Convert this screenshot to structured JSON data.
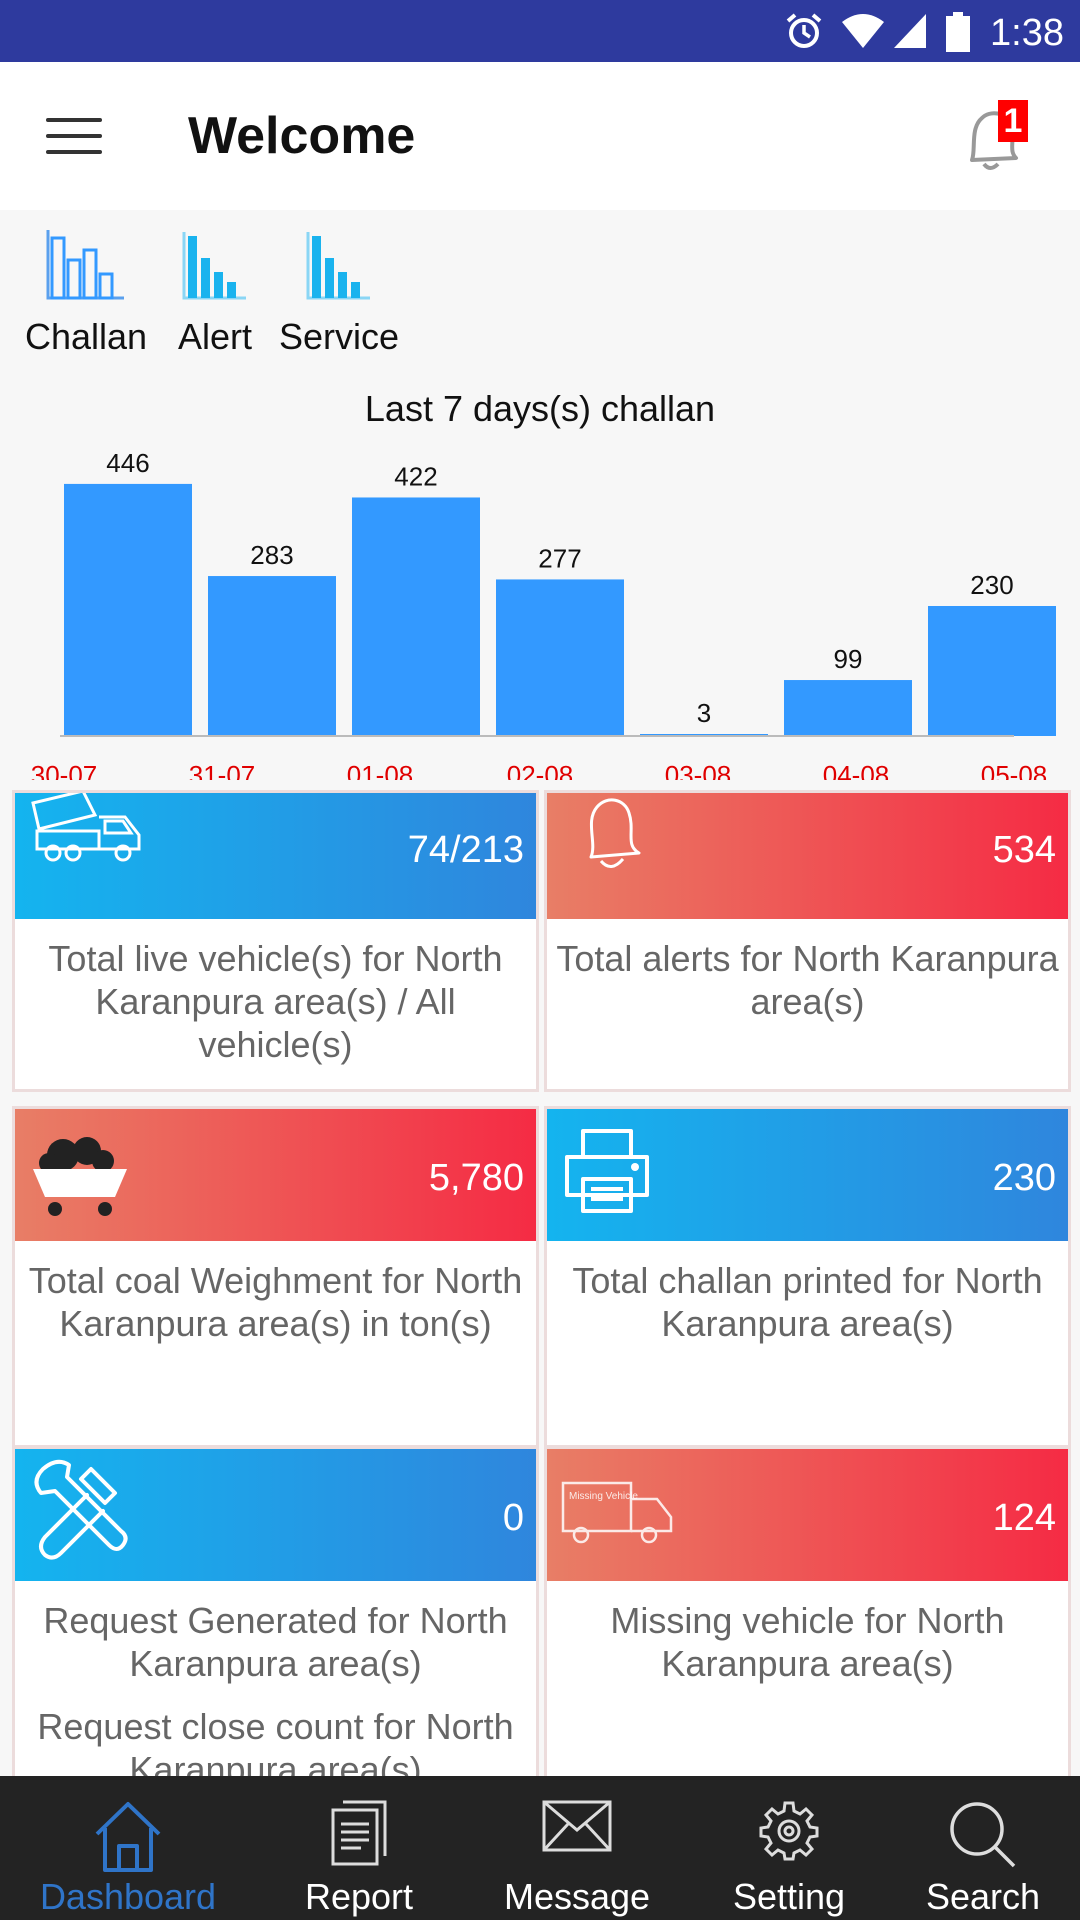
{
  "status_bar": {
    "time": "1:38",
    "icons": [
      "alarm-icon",
      "wifi-icon",
      "cell-signal-icon",
      "battery-icon"
    ]
  },
  "app_bar": {
    "title": "Welcome",
    "menu_icon": "hamburger-menu-icon",
    "notification_icon": "bell-icon",
    "notification_count": "1"
  },
  "chart_tabs": [
    {
      "label": "Challan",
      "icon": "bar-chart-outline-icon"
    },
    {
      "label": "Alert",
      "icon": "bar-chart-icon"
    },
    {
      "label": "Service",
      "icon": "bar-chart-icon"
    }
  ],
  "chart_data": {
    "type": "bar",
    "title": "Last 7 days(s) challan",
    "categories": [
      "30-07",
      "31-07",
      "01-08",
      "02-08",
      "03-08",
      "04-08",
      "05-08"
    ],
    "values": [
      446,
      283,
      422,
      277,
      3,
      99,
      230
    ],
    "ylim": [
      0,
      460
    ],
    "bar_color": "#3399ff",
    "tick_color": "#e00000",
    "grid": false
  },
  "cards": [
    {
      "value": "74/213",
      "texts": [
        "Total live vehicle(s) for North Karanpura area(s) / All vehicle(s)"
      ],
      "icon": "truck-icon",
      "theme": "blue"
    },
    {
      "value": "534",
      "texts": [
        "Total alerts for North Karanpura area(s)"
      ],
      "icon": "bell-icon",
      "theme": "red"
    },
    {
      "value": "5,780",
      "texts": [
        "Total coal Weighment for North Karanpura area(s) in ton(s)"
      ],
      "icon": "coal-cart-icon",
      "theme": "red"
    },
    {
      "value": "230",
      "texts": [
        "Total challan printed for North Karanpura area(s)"
      ],
      "icon": "printer-icon",
      "theme": "blue"
    },
    {
      "value": "0",
      "texts": [
        "Request Generated for North Karanpura area(s)",
        "Request close count for North Karanpura area(s)"
      ],
      "icon": "tools-icon",
      "theme": "blue"
    },
    {
      "value": "124",
      "texts": [
        "Missing vehicle for North Karanpura area(s)"
      ],
      "icon": "missing-vehicle-icon",
      "theme": "red",
      "icon_text": "Missing Vehicle"
    }
  ],
  "bottom_nav": [
    {
      "label": "Dashboard",
      "icon": "home-icon",
      "active": true
    },
    {
      "label": "Report",
      "icon": "report-icon",
      "active": false
    },
    {
      "label": "Message",
      "icon": "envelope-icon",
      "active": false
    },
    {
      "label": "Setting",
      "icon": "gear-icon",
      "active": false
    },
    {
      "label": "Search",
      "icon": "search-icon",
      "active": false
    }
  ]
}
